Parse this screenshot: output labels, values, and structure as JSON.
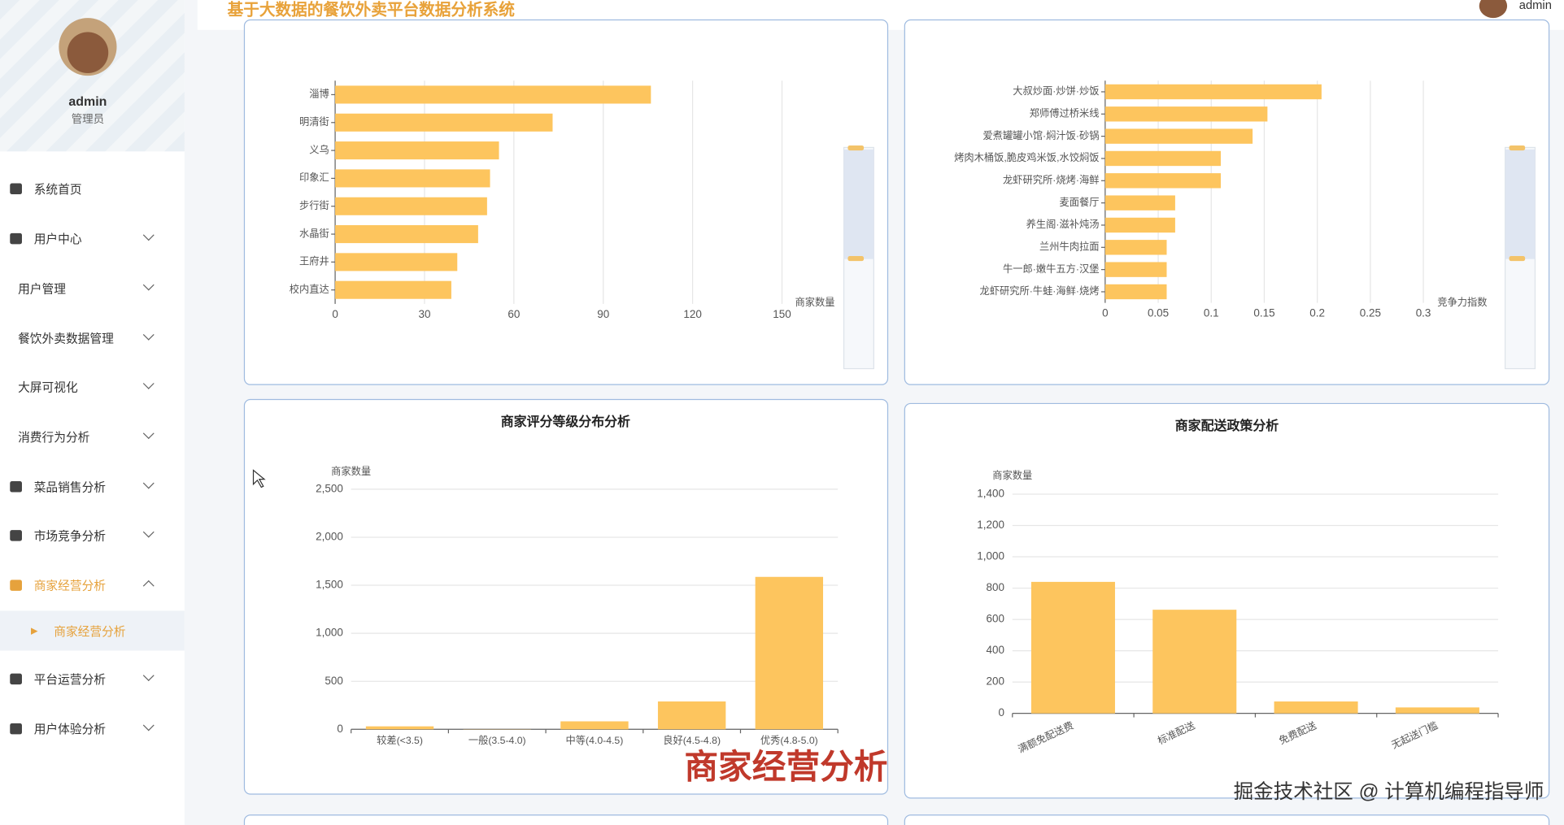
{
  "header": {
    "title": "基于大数据的餐饮外卖平台数据分析系统",
    "user": "admin"
  },
  "sidebar": {
    "username": "admin",
    "role": "管理员",
    "menu": [
      "系统首页",
      "用户中心",
      "用户管理",
      "餐饮外卖数据管理",
      "大屏可视化",
      "消费行为分析",
      "菜品销售分析",
      "市场竞争分析",
      "商家经营分析",
      "平台运营分析",
      "用户体验分析"
    ],
    "submenu": [
      "商家经营分析"
    ]
  },
  "chart_data": [
    {
      "type": "bar",
      "orientation": "horizontal",
      "x_label": "商家数量",
      "color": "#fdc55e",
      "grid": true,
      "categories": [
        "淄博",
        "明清街",
        "义乌",
        "印象汇",
        "步行街",
        "水晶街",
        "王府井",
        "校内直达"
      ],
      "values": [
        106,
        73,
        55,
        52,
        51,
        48,
        41,
        39
      ],
      "xlim": [
        0,
        150
      ],
      "xticks": [
        0,
        30,
        60,
        90,
        120,
        150
      ]
    },
    {
      "type": "bar",
      "orientation": "horizontal",
      "x_label": "竞争力指数",
      "color": "#fdc55e",
      "grid": true,
      "categories": [
        "大叔炒面·炒饼·炒饭",
        "郑师傅过桥米线",
        "爱煮罐罐小馆·焖汁饭·砂锅",
        "烤肉木桶饭,脆皮鸡米饭,水饺焖饭",
        "龙虾研究所·烧烤·海鲜",
        "麦面餐厅",
        "养生阁·滋补炖汤",
        "兰州牛肉拉面",
        "牛一郎·嫩牛五方·汉堡",
        "龙虾研究所·牛蛙·海鲜·烧烤"
      ],
      "values": [
        0.204,
        0.153,
        0.139,
        0.109,
        0.109,
        0.066,
        0.066,
        0.058,
        0.058,
        0.058
      ],
      "xlim": [
        0,
        0.3
      ],
      "xticks": [
        0,
        0.05,
        0.1,
        0.15,
        0.2,
        0.25,
        0.3
      ]
    },
    {
      "type": "bar",
      "orientation": "vertical",
      "title": "商家评分等级分布分析",
      "y_label": "商家数量",
      "color": "#fdc55e",
      "grid": true,
      "categories": [
        "较差(<3.5)",
        "一般(3.5-4.0)",
        "中等(4.0-4.5)",
        "良好(4.5-4.8)",
        "优秀(4.8-5.0)"
      ],
      "values": [
        31,
        2,
        83,
        290,
        1587
      ],
      "ylim": [
        0,
        2500
      ],
      "yticks": [
        0,
        500,
        {
          "value": 1000,
          "label": "1,000"
        },
        {
          "value": 1500,
          "label": "1,500"
        },
        {
          "value": 2000,
          "label": "2,000"
        },
        {
          "value": 2500,
          "label": "2,500"
        }
      ]
    },
    {
      "type": "bar",
      "orientation": "vertical",
      "title": "商家配送政策分析",
      "y_label": "商家数量",
      "color": "#fdc55e",
      "grid": true,
      "rotate_labels": true,
      "categories": [
        "满额免配送费",
        "标准配送",
        "免费配送",
        "无起送门槛"
      ],
      "values": [
        840,
        662,
        76,
        38
      ],
      "ylim": [
        0,
        1400
      ],
      "yticks": [
        0,
        200,
        400,
        600,
        800,
        {
          "value": 1000,
          "label": "1,000"
        },
        {
          "value": 1200,
          "label": "1,200"
        },
        {
          "value": 1400,
          "label": "1,400"
        }
      ]
    }
  ],
  "overlay": {
    "caption": "商家经营分析",
    "watermark": "掘金技术社区 @ 计算机编程指导师"
  }
}
